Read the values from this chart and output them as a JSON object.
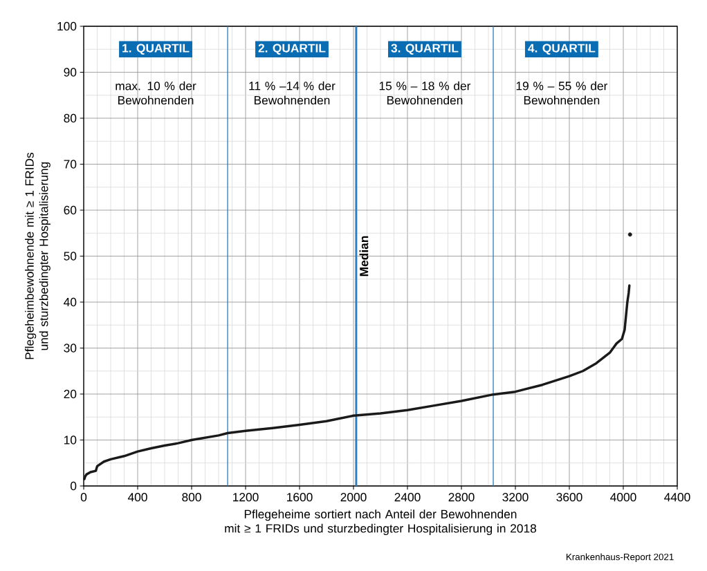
{
  "chart_data": {
    "type": "line",
    "xlabel": "Pflegeheime sortiert nach Anteil der Bewohnenden\nmit ≥ 1 FRIDs und sturzbedingter Hospitalisierung in 2018",
    "ylabel": "Pflegeheimbewohnende mit ≥ 1 FRIDs\nund sturzbedingter Hospitalisierung",
    "xlim": [
      0,
      4400
    ],
    "xticks": [
      0,
      400,
      800,
      1200,
      1600,
      2000,
      2400,
      2800,
      3200,
      3600,
      4000,
      4400
    ],
    "ylim": [
      0,
      100
    ],
    "yticks": [
      0,
      10,
      20,
      30,
      40,
      50,
      60,
      70,
      80,
      90,
      100
    ],
    "grid": true,
    "series": [
      {
        "color": "#1a1a1a",
        "x": [
          5,
          10,
          20,
          50,
          90,
          100,
          150,
          200,
          300,
          400,
          500,
          600,
          700,
          800,
          900,
          1000,
          1067,
          1200,
          1400,
          1600,
          1800,
          2000,
          2200,
          2400,
          2600,
          2800,
          3036,
          3200,
          3400,
          3600,
          3700,
          3800,
          3900,
          3950,
          3990,
          4010,
          4020,
          4030,
          4040,
          4045
        ],
        "values": [
          1.5,
          2,
          2.5,
          3,
          3.3,
          4.3,
          5.3,
          5.8,
          6.5,
          7.5,
          8.2,
          8.8,
          9.3,
          10,
          10.5,
          11,
          11.5,
          12,
          12.6,
          13.3,
          14.1,
          15.3,
          15.8,
          16.5,
          17.5,
          18.5,
          19.9,
          20.5,
          22,
          23.9,
          25,
          26.7,
          29,
          31,
          32,
          34,
          37,
          40,
          42,
          43.6
        ]
      },
      {
        "type": "scatter",
        "color": "#1a1a1a",
        "x": [
          4050
        ],
        "values": [
          54.7
        ]
      }
    ],
    "ref_lines": [
      {
        "axis": "x",
        "value": 1067,
        "color": "#2b7fc0"
      },
      {
        "axis": "x",
        "value": 2020,
        "label": "Median",
        "color": "#2b7fc0"
      },
      {
        "axis": "x",
        "value": 3036,
        "color": "#2b7fc0"
      }
    ],
    "annotations": [
      "1. QUARTIL",
      "max. 10 % der Bewohnenden",
      "2. QUARTIL",
      "11 % –14 % der Bewohnenden",
      "3. QUARTIL",
      "15 % – 18 % der Bewohnenden",
      "4. QUARTIL",
      "19 % – 55 % der Bewohnenden",
      "Krankenhaus-Report 2021"
    ]
  }
}
